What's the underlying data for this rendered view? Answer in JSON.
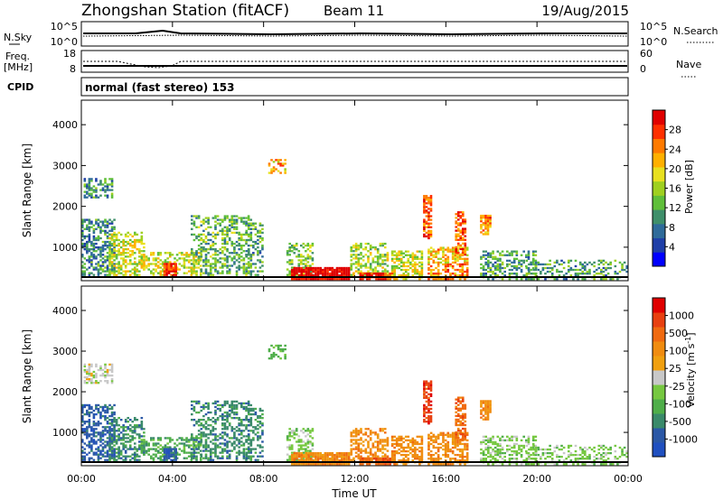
{
  "header": {
    "title": "Zhongshan Station (fitACF)",
    "beam": "Beam 11",
    "date": "19/Aug/2015"
  },
  "top_panels": {
    "nsky_label": "N.Sky",
    "nsky_ticks": [
      "10^5",
      "10^0"
    ],
    "nsearch_label": "N.Search",
    "nsearch_ticks": [
      "10^5",
      "10^0"
    ],
    "freq_label": "Freq.",
    "freq_unit": "[MHz]",
    "freq_ticks": [
      "18",
      "8"
    ],
    "nave_label": "Nave",
    "nave_ticks": [
      "60",
      "0"
    ],
    "cpid_label": "CPID",
    "cpid_text": "normal (fast stereo) 153"
  },
  "colors": {
    "power": [
      "#0000ff",
      "#1f3fa8",
      "#2f6b9a",
      "#3f8f6a",
      "#5fbf3a",
      "#9fd020",
      "#e8e020",
      "#ffb000",
      "#ff7a00",
      "#ff3000",
      "#e00000"
    ],
    "velocity": [
      "#2050c0",
      "#2b58a6",
      "#3a8a6a",
      "#4fae4a",
      "#76c840",
      "#c8c8c8",
      "#f0a010",
      "#f08c10",
      "#f06a10",
      "#e84010",
      "#e00000"
    ]
  },
  "chart_data": [
    {
      "type": "heatmap",
      "name": "power",
      "ylabel": "Slant Range [km]",
      "ylim": [
        180,
        4600
      ],
      "yticks": [
        "1000",
        "2000",
        "3000",
        "4000"
      ],
      "xlim": [
        0,
        24
      ],
      "colorbar_label": "Power [dB]",
      "colorbar_ticks": [
        "4",
        "8",
        "12",
        "16",
        "20",
        "24",
        "28"
      ],
      "colorbar_range": [
        0,
        30
      ]
    },
    {
      "type": "heatmap",
      "name": "velocity",
      "ylabel": "Slant Range [km]",
      "ylim": [
        180,
        4600
      ],
      "yticks": [
        "1000",
        "2000",
        "3000",
        "4000"
      ],
      "xlim": [
        0,
        24
      ],
      "xlabel": "Time UT",
      "xticks": [
        "00:00",
        "04:00",
        "08:00",
        "12:00",
        "16:00",
        "20:00",
        "00:00"
      ],
      "colorbar_label": "Velocity [m s^-1]",
      "colorbar_ticks": [
        "1000",
        "500",
        "100",
        "25",
        "-25",
        "-100",
        "-500",
        "-1000"
      ]
    }
  ]
}
